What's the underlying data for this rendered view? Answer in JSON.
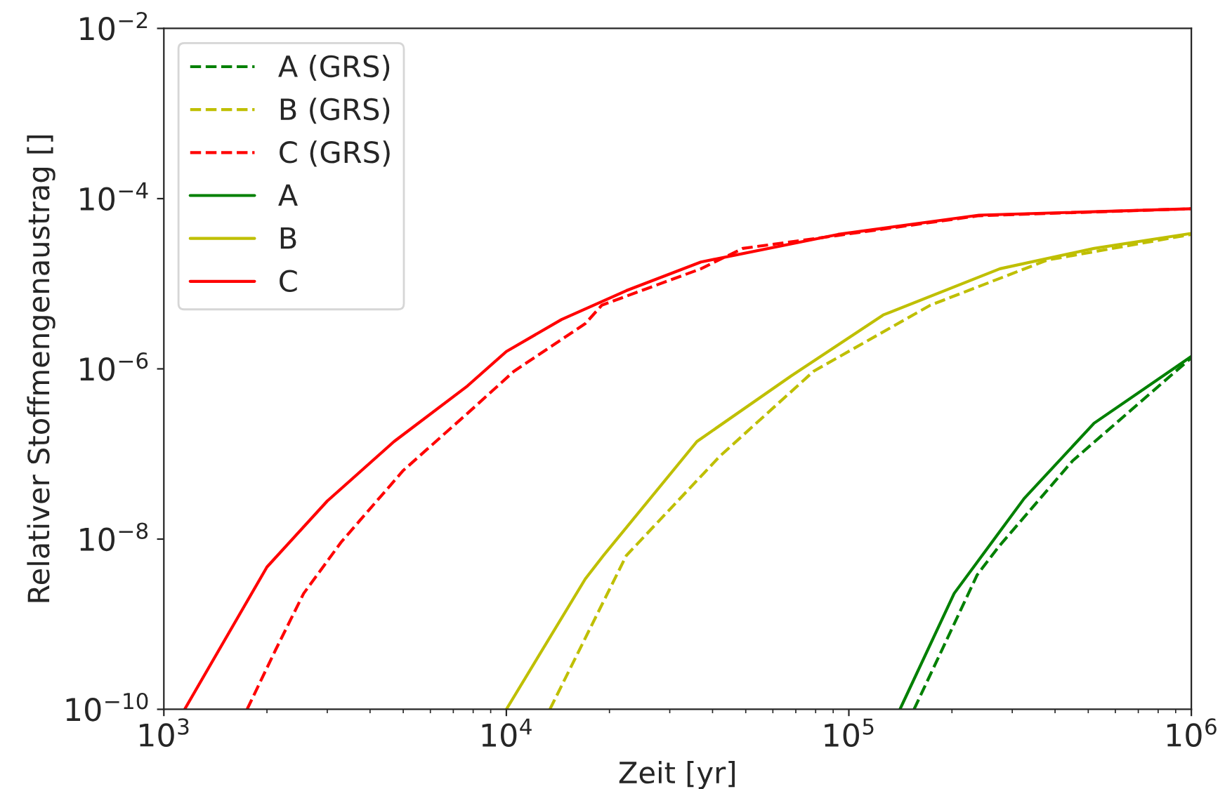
{
  "chart_data": {
    "type": "line",
    "xlabel": "Zeit [yr]",
    "ylabel": "Relativer Stoffmengenaustrag []",
    "log": "xy",
    "legend": "top left",
    "grid": false,
    "xlim": [
      1000,
      1000000
    ],
    "xticks": [
      {
        "value": 1000,
        "label": "10$^{3}$"
      },
      {
        "value": 10000,
        "label": "10$^{4}$"
      },
      {
        "value": 100000,
        "label": "10$^{5}$"
      },
      {
        "value": 1000000,
        "label": "10$^{6}$"
      }
    ],
    "ylim": [
      1e-10,
      0.01
    ],
    "yticks": [
      {
        "value": 1e-10,
        "label": "10$^{−10}$"
      },
      {
        "value": 1e-08,
        "label": "10$^{−8}$"
      },
      {
        "value": 1e-06,
        "label": "10$^{−6}$"
      },
      {
        "value": 0.0001,
        "label": "10$^{−4}$"
      },
      {
        "value": 0.01,
        "label": "10$^{−2}$"
      }
    ],
    "series": [
      {
        "name": "A (GRS)",
        "color": "#008000",
        "line_style": "dashed",
        "x": [
          155000,
          237000,
          275000,
          450000,
          1000000
        ],
        "values": [
          1e-10,
          3.8e-09,
          8.3e-09,
          8.3e-08,
          1.35e-06
        ]
      },
      {
        "name": "B (GRS)",
        "color": "#bfbf00",
        "line_style": "dashed",
        "x": [
          13400,
          22400,
          42000,
          79000,
          173000,
          380000,
          1000000
        ],
        "values": [
          1e-10,
          6.4e-09,
          9.4e-08,
          9.4e-07,
          5.6e-06,
          1.9e-05,
          3.8e-05
        ]
      },
      {
        "name": "C (GRS)",
        "color": "#ff0000",
        "line_style": "dashed",
        "x": [
          1750,
          2120,
          2560,
          3300,
          5000,
          7700,
          10500,
          17000,
          19000,
          37000,
          49000,
          93000,
          240000,
          1000000
        ],
        "values": [
          1e-10,
          5e-10,
          2.3e-09,
          9.3e-09,
          6.4e-08,
          3e-07,
          9.3e-07,
          3.4e-06,
          5.6e-06,
          1.5e-05,
          2.6e-05,
          3.7e-05,
          6.3e-05,
          7.6e-05
        ]
      },
      {
        "name": "A",
        "color": "#008000",
        "line_style": "solid",
        "x": [
          141000,
          203000,
          325000,
          520000,
          1000000
        ],
        "values": [
          1e-10,
          2.3e-09,
          3e-08,
          2.3e-07,
          1.4e-06
        ]
      },
      {
        "name": "B",
        "color": "#bfbf00",
        "line_style": "solid",
        "x": [
          10000,
          17000,
          19200,
          36000,
          68000,
          126000,
          276000,
          520000,
          1000000
        ],
        "values": [
          1e-10,
          3.4e-09,
          6.4e-09,
          1.4e-07,
          8.3e-07,
          4.3e-06,
          1.5e-05,
          2.6e-05,
          3.9e-05
        ]
      },
      {
        "name": "C",
        "color": "#ff0000",
        "line_style": "solid",
        "x": [
          1150,
          2000,
          3000,
          4700,
          7700,
          10000,
          14500,
          22400,
          37000,
          93000,
          240000,
          1000000
        ],
        "values": [
          1e-10,
          4.7e-09,
          2.8e-08,
          1.4e-07,
          6.3e-07,
          1.6e-06,
          3.8e-06,
          8.3e-06,
          1.8e-05,
          3.8e-05,
          6.4e-05,
          7.6e-05
        ]
      }
    ]
  }
}
